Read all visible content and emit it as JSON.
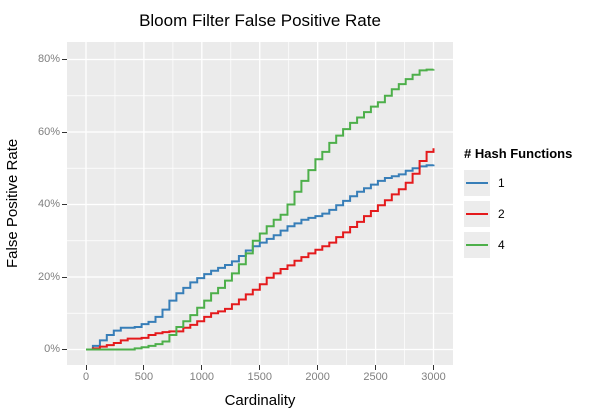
{
  "title": "Bloom Filter False Positive Rate",
  "axes": {
    "x_label": "Cardinality",
    "y_label": "False Positive Rate",
    "x_tick_labels": [
      "0",
      "500",
      "1000",
      "1500",
      "2000",
      "2500",
      "3000"
    ],
    "y_tick_labels": [
      "0%",
      "20%",
      "40%",
      "60%",
      "80%"
    ]
  },
  "legend": {
    "title": "# Hash Functions",
    "position": "right"
  },
  "colors": {
    "panel_bg": "#EBEBEB",
    "grid_major": "#FFFFFF",
    "grid_minor": "#FFFFFF",
    "tick_label": "#7F7F7F",
    "tick_mark": "#333333",
    "text": "#000000",
    "legend_key_bg": "#ECECEC"
  },
  "chart_data": {
    "type": "line",
    "line_style": "step",
    "title": "Bloom Filter False Positive Rate",
    "xlabel": "Cardinality",
    "ylabel": "False Positive Rate",
    "xlim": [
      0,
      3000
    ],
    "ylim": [
      0,
      80
    ],
    "x_major": [
      0,
      500,
      1000,
      1500,
      2000,
      2500,
      3000
    ],
    "x_minor": [
      250,
      750,
      1250,
      1750,
      2250,
      2750
    ],
    "y_major": [
      0,
      20,
      40,
      60,
      80
    ],
    "y_minor": [
      10,
      30,
      50,
      70
    ],
    "grid": true,
    "legend_position": "right",
    "x_start": 0,
    "x_step": 60,
    "series": [
      {
        "name": "1",
        "color": "#377EB8",
        "values": [
          0,
          1,
          2.5,
          4,
          5.2,
          6,
          6,
          6.2,
          7,
          7.6,
          9,
          11,
          13.5,
          15.5,
          17,
          18.5,
          19.7,
          20.8,
          21.7,
          22.5,
          23.3,
          24.3,
          25.8,
          27.3,
          28.5,
          29.5,
          30.5,
          31.5,
          32.8,
          34,
          34.8,
          35.8,
          36.3,
          36.8,
          37.5,
          38.5,
          39.8,
          41,
          42.3,
          43.5,
          44.5,
          45.5,
          46.5,
          47.3,
          47.8,
          48.3,
          49.3,
          50,
          50.5,
          50.8,
          51
        ]
      },
      {
        "name": "2",
        "color": "#E41A1C",
        "values": [
          0,
          0.3,
          0.8,
          1.2,
          1.8,
          2.5,
          3,
          3,
          3.2,
          4,
          4.5,
          4.8,
          5,
          5,
          6,
          6.8,
          7.8,
          9,
          10,
          10.5,
          11.2,
          12.5,
          13.8,
          15.2,
          16.5,
          18,
          19.8,
          21,
          22.2,
          23.2,
          24.5,
          25.5,
          26.5,
          27.5,
          28.5,
          29.5,
          31,
          32.3,
          33.8,
          35.2,
          36.8,
          38.2,
          39.8,
          41.2,
          42.8,
          44.2,
          46,
          48.5,
          52,
          54.5,
          55.5
        ]
      },
      {
        "name": "4",
        "color": "#4DAF4A",
        "values": [
          0,
          0,
          0,
          0,
          0,
          0,
          0,
          0.3,
          0.6,
          1,
          1.5,
          2.2,
          4,
          6.2,
          7.8,
          9.5,
          11.5,
          13.5,
          15.5,
          17,
          19,
          21,
          23.5,
          26.5,
          30,
          32,
          34,
          35.8,
          37.2,
          40,
          43.5,
          46.5,
          49.5,
          52.5,
          54.5,
          57,
          59,
          60.8,
          62.5,
          64,
          65.5,
          67,
          68.2,
          70,
          71.8,
          73.2,
          74.6,
          75.8,
          77,
          77.2,
          77.3
        ]
      }
    ]
  }
}
